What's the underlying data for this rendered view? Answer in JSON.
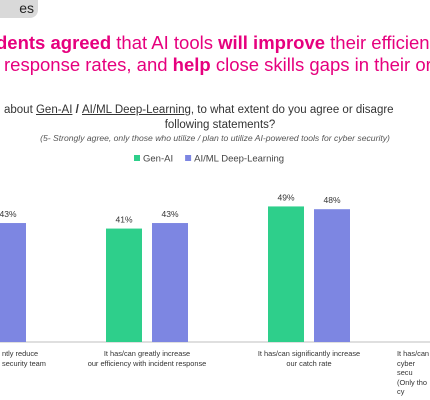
{
  "header": {
    "tag": "es",
    "headline": [
      [
        {
          "text": "dents agreed",
          "bold": true
        },
        {
          "text": " that AI tools ",
          "bold": false
        },
        {
          "text": "will improve",
          "bold": true
        },
        {
          "text": " their efficien",
          "bold": false
        }
      ],
      [
        {
          "text": "response rates, and ",
          "bold": false
        },
        {
          "text": "help",
          "bold": true
        },
        {
          "text": " close skills gaps in their or",
          "bold": false
        }
      ]
    ]
  },
  "question": {
    "line1": [
      {
        "text": "about ",
        "underline": false
      },
      {
        "text": "Gen-AI",
        "underline": true
      },
      {
        "text": " / ",
        "underline": false
      },
      {
        "text": "AI/ML Deep-Learning",
        "underline": true
      },
      {
        "text": ", to what extent do you agree or disagre",
        "underline": false
      }
    ],
    "line2": "following statements?",
    "note": "(5- Strongly agree, only those who utilize / plan to utilize AI-powered tools for cyber security)"
  },
  "chart_data": {
    "type": "bar",
    "categories": [
      "ntly reduce\nsecurity team",
      "It has/can greatly increase\nour efficiency with incident response",
      "It has/can significantly increase\nour catch rate",
      "It has/can\ncyber secu\n(Only tho\ncy"
    ],
    "series": [
      {
        "name": "Gen-AI",
        "color": "#2ecf8b",
        "values": [
          null,
          41,
          49,
          null
        ],
        "value_labels": [
          null,
          "41%",
          "49%",
          null
        ]
      },
      {
        "name": "AI/ML Deep-Learning",
        "color": "#7d86e2",
        "values": [
          43,
          43,
          48,
          null
        ],
        "value_labels": [
          "43%",
          "43%",
          "48%",
          null
        ]
      }
    ],
    "ylim": [
      0,
      60
    ],
    "legend": "top"
  }
}
